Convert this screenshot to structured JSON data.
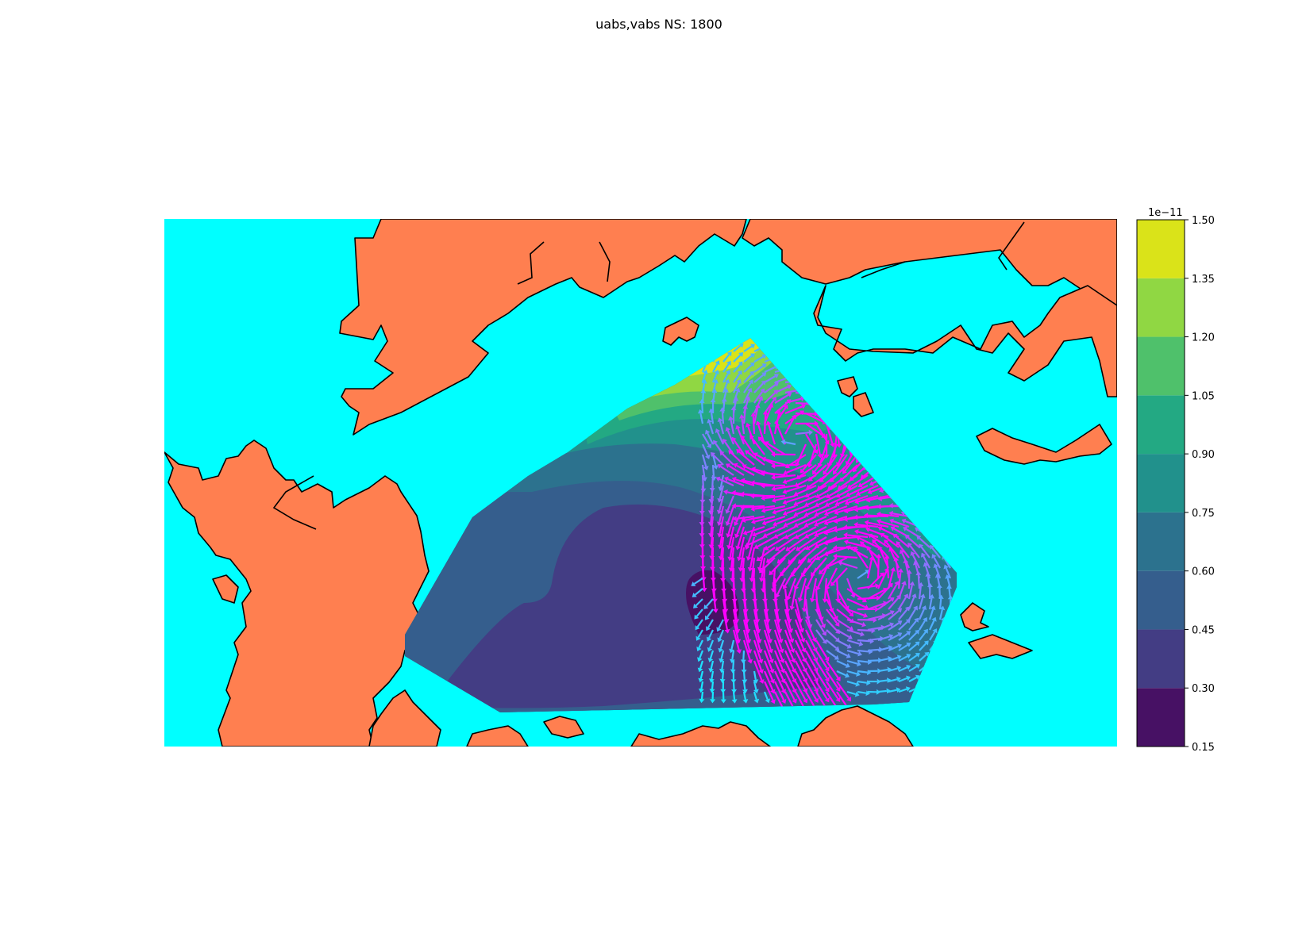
{
  "chart_data": {
    "type": "contour-map",
    "title": "uabs,vabs NS: 1800",
    "colorbar": {
      "offset_label": "1e−11",
      "ticks": [
        "0.15",
        "0.30",
        "0.45",
        "0.60",
        "0.75",
        "0.90",
        "1.05",
        "1.20",
        "1.35",
        "1.50"
      ],
      "levels": [
        0.15,
        0.3,
        0.45,
        0.6,
        0.75,
        0.9,
        1.05,
        1.2,
        1.35,
        1.5
      ],
      "colors": [
        "#471164",
        "#433d84",
        "#355e8d",
        "#2c728e",
        "#21918c",
        "#23a983",
        "#4fc16b",
        "#90d743",
        "#dae319"
      ]
    },
    "ocean_color": "#00ffff",
    "land_color": "#ff7f50",
    "quiver_colors": [
      "#00ffff",
      "#ff00ff"
    ],
    "grid": false,
    "legend": "none"
  }
}
